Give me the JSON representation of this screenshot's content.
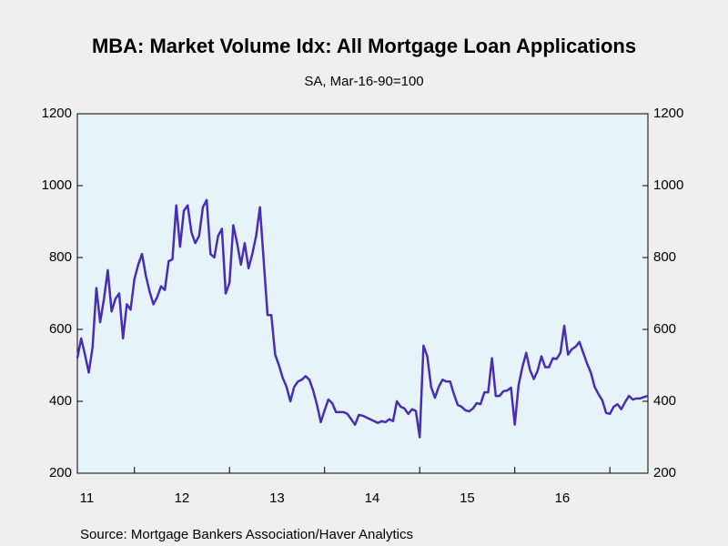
{
  "chart_data": {
    "type": "line",
    "title": "MBA: Market Volume Idx: All Mortgage Loan Applications",
    "subtitle": "SA, Mar-16-90=100",
    "source": "Source:  Mortgage Bankers Association/Haver Analytics",
    "title_color": "#3a2fa6",
    "color": "#4a2db5",
    "plot_background": "#e6f4fa",
    "ylim": [
      200,
      1200
    ],
    "yticks": [
      200,
      400,
      600,
      800,
      1000,
      1200
    ],
    "mirror_y_axis": true,
    "xlim": [
      2011.4,
      2017.4
    ],
    "xticks": [
      {
        "value": 2011.5,
        "label": "11"
      },
      {
        "value": 2012.5,
        "label": "12"
      },
      {
        "value": 2013.5,
        "label": "13"
      },
      {
        "value": 2014.5,
        "label": "14"
      },
      {
        "value": 2015.5,
        "label": "15"
      },
      {
        "value": 2016.5,
        "label": "16"
      }
    ],
    "xtick_marks": [
      2012,
      2013,
      2014,
      2015,
      2016,
      2017
    ],
    "x": [
      2011.4,
      2011.44,
      2011.48,
      2011.52,
      2011.56,
      2011.6,
      2011.64,
      2011.68,
      2011.72,
      2011.76,
      2011.8,
      2011.84,
      2011.88,
      2011.92,
      2011.96,
      2012.0,
      2012.04,
      2012.08,
      2012.12,
      2012.16,
      2012.2,
      2012.24,
      2012.28,
      2012.32,
      2012.36,
      2012.4,
      2012.44,
      2012.48,
      2012.52,
      2012.56,
      2012.6,
      2012.64,
      2012.68,
      2012.72,
      2012.76,
      2012.8,
      2012.84,
      2012.88,
      2012.92,
      2012.96,
      2013.0,
      2013.04,
      2013.08,
      2013.12,
      2013.16,
      2013.2,
      2013.24,
      2013.28,
      2013.32,
      2013.36,
      2013.4,
      2013.44,
      2013.48,
      2013.52,
      2013.56,
      2013.6,
      2013.64,
      2013.68,
      2013.72,
      2013.76,
      2013.8,
      2013.84,
      2013.88,
      2013.92,
      2013.96,
      2014.0,
      2014.04,
      2014.08,
      2014.12,
      2014.16,
      2014.2,
      2014.24,
      2014.28,
      2014.32,
      2014.36,
      2014.4,
      2014.44,
      2014.48,
      2014.52,
      2014.56,
      2014.6,
      2014.64,
      2014.68,
      2014.72,
      2014.76,
      2014.8,
      2014.84,
      2014.88,
      2014.92,
      2014.96,
      2015.0,
      2015.04,
      2015.08,
      2015.12,
      2015.16,
      2015.2,
      2015.24,
      2015.28,
      2015.32,
      2015.36,
      2015.4,
      2015.44,
      2015.48,
      2015.52,
      2015.56,
      2015.6,
      2015.64,
      2015.68,
      2015.72,
      2015.76,
      2015.8,
      2015.84,
      2015.88,
      2015.92,
      2015.96,
      2016.0,
      2016.04,
      2016.08,
      2016.12,
      2016.16,
      2016.2,
      2016.24,
      2016.28,
      2016.32,
      2016.36,
      2016.4,
      2016.44,
      2016.48,
      2016.52,
      2016.56,
      2016.6,
      2016.64,
      2016.68,
      2016.72,
      2016.76,
      2016.8,
      2016.84,
      2016.88,
      2016.92,
      2016.96,
      2017.0,
      2017.04,
      2017.08,
      2017.12,
      2017.16,
      2017.2,
      2017.24,
      2017.28,
      2017.32,
      2017.36,
      2017.4
    ],
    "values": [
      520,
      575,
      530,
      480,
      550,
      715,
      620,
      685,
      765,
      650,
      685,
      700,
      575,
      670,
      655,
      740,
      780,
      810,
      750,
      705,
      670,
      690,
      720,
      710,
      790,
      795,
      945,
      830,
      930,
      945,
      870,
      840,
      860,
      940,
      960,
      810,
      800,
      860,
      880,
      700,
      730,
      890,
      840,
      780,
      840,
      770,
      810,
      860,
      940,
      790,
      640,
      640,
      530,
      500,
      465,
      440,
      400,
      440,
      455,
      460,
      470,
      460,
      430,
      390,
      342,
      375,
      405,
      395,
      370,
      370,
      370,
      365,
      350,
      335,
      362,
      360,
      355,
      350,
      345,
      340,
      345,
      342,
      350,
      345,
      400,
      385,
      380,
      365,
      378,
      373,
      300,
      555,
      525,
      440,
      410,
      440,
      460,
      455,
      455,
      420,
      390,
      385,
      375,
      372,
      380,
      395,
      392,
      425,
      425,
      520,
      415,
      415,
      428,
      430,
      438,
      335,
      445,
      495,
      535,
      487,
      462,
      485,
      525,
      495,
      495,
      520,
      518,
      535,
      610,
      530,
      545,
      552,
      565,
      535,
      505,
      480,
      440,
      420,
      403,
      368,
      365,
      385,
      392,
      378,
      398,
      415,
      405,
      408,
      408,
      412,
      415
    ]
  }
}
